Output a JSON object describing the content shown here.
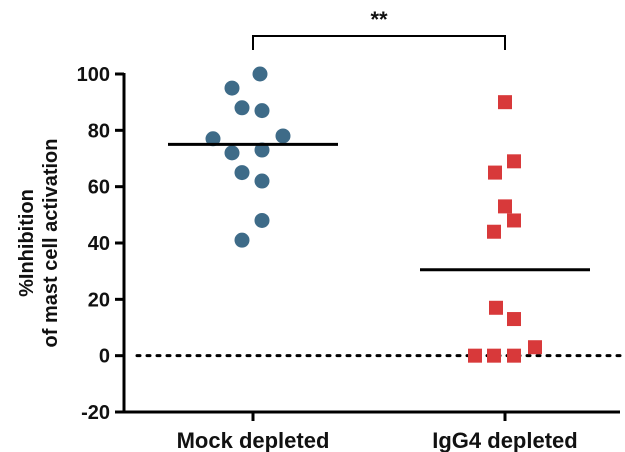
{
  "chart_data": {
    "type": "scatter",
    "title": "",
    "ylabel_lines": [
      "%Inhibition",
      "of mast cell activation"
    ],
    "xlabel": "",
    "categories": [
      "Mock depleted",
      "IgG4 depleted"
    ],
    "ylim": [
      -20,
      100
    ],
    "yticks": [
      -20,
      0,
      20,
      40,
      60,
      80,
      100
    ],
    "reference_line": 0,
    "significance": "**",
    "series": [
      {
        "category": "Mock depleted",
        "marker": "circle",
        "color": "#3e6b88",
        "mean": 75,
        "points": [
          {
            "x": 0,
            "y": 100
          },
          {
            "x": 0,
            "y": 95
          },
          {
            "x": 0,
            "y": 88
          },
          {
            "x": 0,
            "y": 87
          },
          {
            "x": 0,
            "y": 78
          },
          {
            "x": 0,
            "y": 77
          },
          {
            "x": 0,
            "y": 73
          },
          {
            "x": 0,
            "y": 72
          },
          {
            "x": 0,
            "y": 65
          },
          {
            "x": 0,
            "y": 62
          },
          {
            "x": 0,
            "y": 48
          },
          {
            "x": 0,
            "y": 41
          }
        ]
      },
      {
        "category": "IgG4 depleted",
        "marker": "square",
        "color": "#d8393a",
        "mean": 30.5,
        "points": [
          {
            "x": 1,
            "y": 90
          },
          {
            "x": 1,
            "y": 69
          },
          {
            "x": 1,
            "y": 65
          },
          {
            "x": 1,
            "y": 53
          },
          {
            "x": 1,
            "y": 48
          },
          {
            "x": 1,
            "y": 44
          },
          {
            "x": 1,
            "y": 17
          },
          {
            "x": 1,
            "y": 13
          },
          {
            "x": 1,
            "y": 3
          },
          {
            "x": 1,
            "y": 0
          },
          {
            "x": 1,
            "y": 0
          },
          {
            "x": 1,
            "y": 0
          }
        ]
      }
    ]
  }
}
